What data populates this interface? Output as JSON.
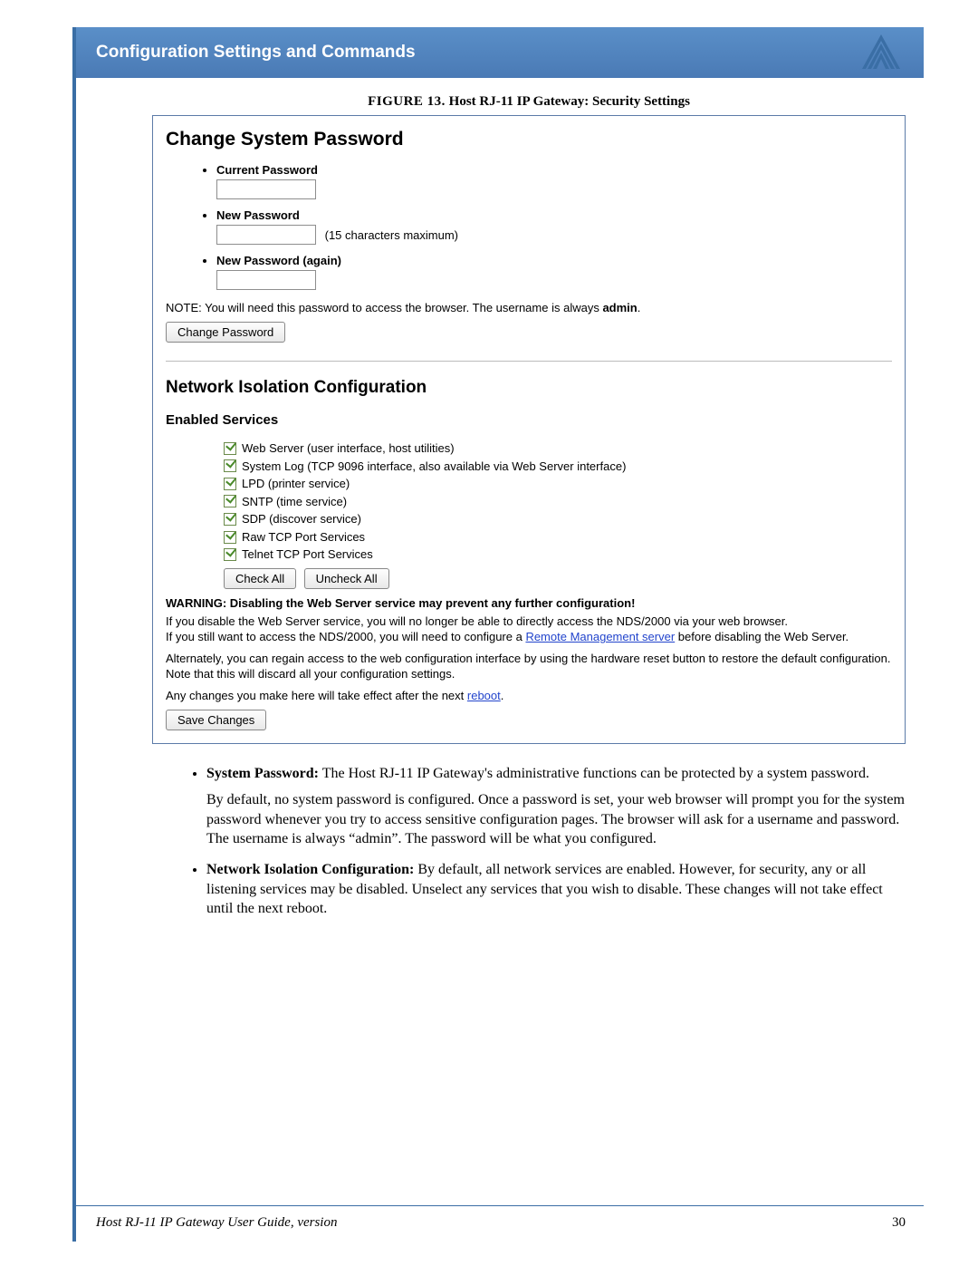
{
  "header": {
    "title": "Configuration Settings and Commands"
  },
  "figure": {
    "label": "FIGURE 13.",
    "title": "Host RJ-11 IP Gateway: Security Settings"
  },
  "screenshot": {
    "section1_title": "Change System Password",
    "fields": {
      "current": "Current Password",
      "new": "New Password",
      "new_note": "(15 characters maximum)",
      "again": "New Password (again)"
    },
    "note_prefix": "NOTE: You will need this password to access the browser. The username is always ",
    "note_bold": "admin",
    "note_suffix": ".",
    "btn_change": "Change Password",
    "section2_title": "Network Isolation Configuration",
    "section2_sub": "Enabled Services",
    "services": [
      "Web Server (user interface, host utilities)",
      "System Log (TCP 9096 interface, also available via Web Server interface)",
      "LPD (printer service)",
      "SNTP (time service)",
      "SDP (discover service)",
      "Raw TCP Port Services",
      "Telnet TCP Port Services"
    ],
    "btn_check": "Check All",
    "btn_uncheck": "Uncheck All",
    "warn": "WARNING: Disabling the Web Server service may prevent any further configuration!",
    "p1a": "If you disable the Web Server service, you will no longer be able to directly access the NDS/2000 via your web browser.",
    "p1b_pre": "If you still want to access the NDS/2000, you will need to configure a ",
    "p1b_link": "Remote Management server",
    "p1b_post": " before disabling the Web Server.",
    "p2": "Alternately, you can regain access to the web configuration interface by using the hardware reset button to restore the default configuration. Note that this will discard all your configuration settings.",
    "p3_pre": "Any changes you make here will take effect after the next ",
    "p3_link": "reboot",
    "p3_post": ".",
    "btn_save": "Save Changes"
  },
  "body": {
    "b1_lead": "System Password:",
    "b1_text": " The Host RJ-11 IP Gateway's administrative functions can be protected by a system password.",
    "b1_p2": "By default, no system password is configured. Once a password is set, your web browser will prompt you for the system password whenever you try to access sensitive configuration pages. The browser will ask for a username and password. The username is always “admin”. The password will be what you configured.",
    "b2_lead": "Network Isolation Configuration:",
    "b2_text": " By default, all network services are enabled. However, for security, any or all listening services may be disabled. Unselect any services that you wish to disable. These changes will not take effect until the next reboot."
  },
  "footer": {
    "title": "Host RJ-11 IP Gateway User Guide, version",
    "page": "30"
  },
  "colors": {
    "accent": "#3a6ea5",
    "header_grad_top": "#5a8fc8",
    "header_grad_bot": "#4a7ab5",
    "link": "#2244cc",
    "check_border": "#6a8a4a",
    "check_mark": "#4a8a2a"
  }
}
